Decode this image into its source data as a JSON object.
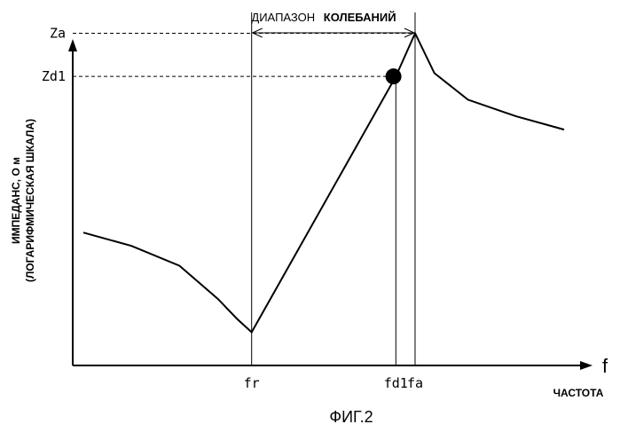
{
  "chart_data": {
    "type": "line",
    "range_label_part1": "ДИАПАЗОН",
    "range_label_part2": "КОЛЕБАНИЙ",
    "ylabel_line1": "ИМПЕДАНС, О м",
    "ylabel_line2": "(ЛОГАРИФМИЧЕСКАЯ ШКАЛА)",
    "x_symbol": "f",
    "xlabel": "ЧАСТОТА",
    "caption": "ФИГ.2",
    "x_ticks": [
      {
        "id": "fr",
        "label": "fr",
        "x": 0.35
      },
      {
        "id": "fd1",
        "label": "fd1",
        "x": 0.65
      },
      {
        "id": "fa",
        "label": "fa",
        "x": 0.69
      }
    ],
    "y_ticks": [
      {
        "id": "za",
        "label": "Za",
        "y": 1.0
      },
      {
        "id": "zd1",
        "label": "Zd1",
        "y": 0.87
      }
    ],
    "xlim": [
      0,
      1
    ],
    "ylim": [
      0,
      1.1
    ],
    "series": [
      {
        "x": [
          0.0,
          0.1,
          0.2,
          0.28,
          0.32,
          0.35,
          0.65,
          0.69,
          0.73,
          0.8,
          0.9,
          1.0
        ],
        "y": [
          0.4,
          0.36,
          0.3,
          0.2,
          0.14,
          0.1,
          0.87,
          1.0,
          0.88,
          0.8,
          0.75,
          0.71
        ]
      }
    ],
    "marker": {
      "x": 0.645,
      "y": 0.87
    },
    "oscillation_range": {
      "from": 0.35,
      "to": 0.69
    }
  }
}
